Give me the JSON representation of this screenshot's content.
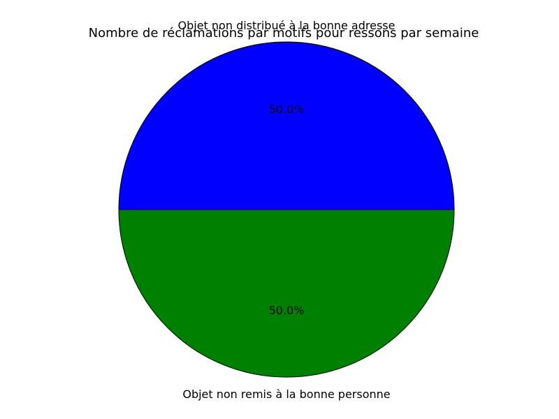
{
  "chart_data": {
    "type": "pie",
    "title": "Nombre de réclamations par motifs pour ressons par semaine",
    "categories": [
      "Objet non distribué à la bonne adresse",
      "Objet non remis à la bonne personne"
    ],
    "values": [
      50,
      50
    ],
    "percent_labels": [
      "50.0%",
      "50.0%"
    ],
    "colors": [
      "#0000ff",
      "#008000"
    ],
    "start_angle_deg": 0,
    "direction": "counterclockwise",
    "legend": "none"
  }
}
